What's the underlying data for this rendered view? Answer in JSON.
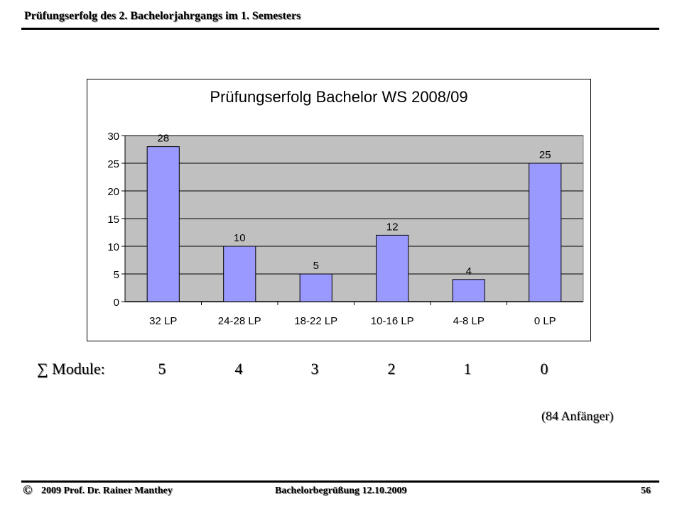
{
  "header": {
    "title": "Prüfungserfolg des 2. Bachelorjahrgangs im 1. Semesters"
  },
  "chart_data": {
    "type": "bar",
    "title": "Prüfungserfolg Bachelor WS 2008/09",
    "categories": [
      "32 LP",
      "24-28 LP",
      "18-22 LP",
      "10-16 LP",
      "4-8 LP",
      "0 LP"
    ],
    "values": [
      28,
      10,
      5,
      12,
      4,
      25
    ],
    "data_labels": [
      "28",
      "10",
      "5",
      "12",
      "4",
      "25"
    ],
    "ylim": [
      0,
      30
    ],
    "yticks": [
      0,
      5,
      10,
      15,
      20,
      25,
      30
    ],
    "xlabel": "",
    "ylabel": "",
    "grid": true,
    "colors": {
      "bar": "#9999ff",
      "plot_bg": "#c0c0c0",
      "bar_stroke": "#000000"
    }
  },
  "modules": {
    "label": "∑ Module:",
    "values": [
      "5",
      "4",
      "3",
      "2",
      "1",
      "0"
    ]
  },
  "note": "(84 Anfänger)",
  "footer": {
    "copyright_symbol": "©",
    "author": "2009  Prof. Dr. Rainer Manthey",
    "event": "Bachelorbegrüßung 12.10.2009",
    "page": "56"
  }
}
